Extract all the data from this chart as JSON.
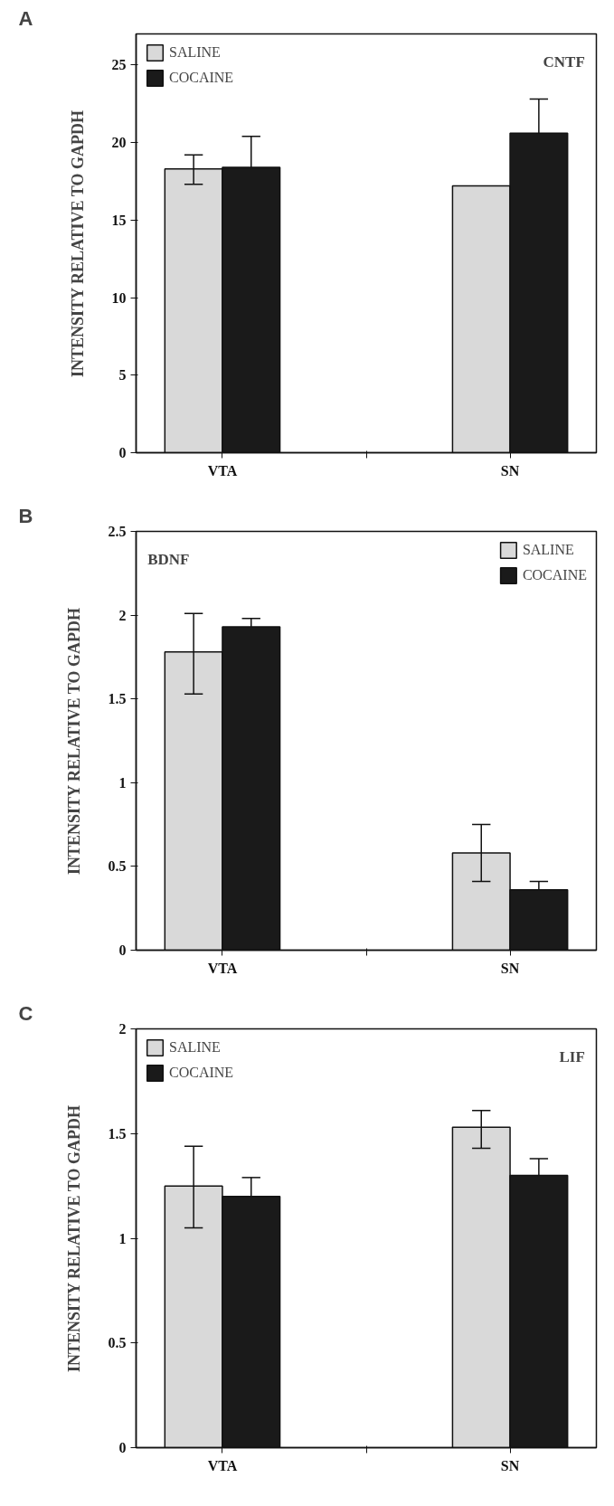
{
  "chart_data": [
    {
      "type": "bar",
      "title": "CNTF",
      "annotations": [
        "A"
      ],
      "ylabel": "INTENSITY RELATIVE TO GAPDH",
      "categories": [
        "VTA",
        "SN"
      ],
      "ylim": [
        0,
        27
      ],
      "yticks": [
        0,
        5,
        10,
        15,
        20,
        25
      ],
      "legend": "top left",
      "grid": false,
      "series": [
        {
          "name": "SALINE",
          "color": "#d9d9d9",
          "values": [
            18.3,
            17.2
          ],
          "errors": [
            [
              17.3,
              19.2
            ],
            null
          ]
        },
        {
          "name": "COCAINE",
          "color": "#1a1a1a",
          "values": [
            18.4,
            20.6
          ],
          "errors": [
            [
              18.4,
              20.4
            ],
            [
              20.6,
              22.8
            ]
          ]
        }
      ]
    },
    {
      "type": "bar",
      "title": "BDNF",
      "annotations": [
        "B"
      ],
      "ylabel": "INTENSITY RELATIVE TO GAPDH",
      "categories": [
        "VTA",
        "SN"
      ],
      "ylim": [
        0,
        2.5
      ],
      "yticks": [
        0,
        0.5,
        1,
        1.5,
        2,
        2.5
      ],
      "legend": "top right",
      "grid": false,
      "series": [
        {
          "name": "SALINE",
          "color": "#d9d9d9",
          "values": [
            1.78,
            0.58
          ],
          "errors": [
            [
              1.53,
              2.01
            ],
            [
              0.41,
              0.75
            ]
          ]
        },
        {
          "name": "COCAINE",
          "color": "#1a1a1a",
          "values": [
            1.93,
            0.36
          ],
          "errors": [
            [
              1.93,
              1.98
            ],
            [
              0.36,
              0.41
            ]
          ]
        }
      ]
    },
    {
      "type": "bar",
      "title": "LIF",
      "annotations": [
        "C"
      ],
      "ylabel": "INTENSITY RELATIVE TO GAPDH",
      "categories": [
        "VTA",
        "SN"
      ],
      "ylim": [
        0,
        2
      ],
      "yticks": [
        0,
        0.5,
        1,
        1.5,
        2
      ],
      "legend": "top left",
      "grid": false,
      "series": [
        {
          "name": "SALINE",
          "color": "#d9d9d9",
          "values": [
            1.25,
            1.53
          ],
          "errors": [
            [
              1.05,
              1.44
            ],
            [
              1.43,
              1.61
            ]
          ]
        },
        {
          "name": "COCAINE",
          "color": "#1a1a1a",
          "values": [
            1.2,
            1.3
          ],
          "errors": [
            [
              1.2,
              1.29
            ],
            [
              1.3,
              1.38
            ]
          ]
        }
      ]
    }
  ]
}
